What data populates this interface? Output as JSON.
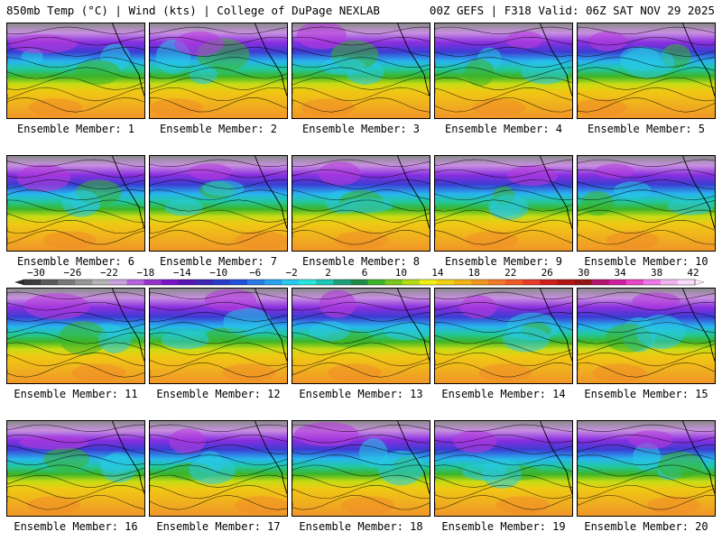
{
  "header": {
    "left": "850mb Temp (°C) | Wind (kts) | College of DuPage NEXLAB",
    "right": "00Z GEFS | F318 Valid: 06Z SAT NOV 29 2025"
  },
  "member_prefix": "Ensemble Member: ",
  "members": [
    "1",
    "2",
    "3",
    "4",
    "5",
    "6",
    "7",
    "8",
    "9",
    "10",
    "11",
    "12",
    "13",
    "14",
    "15",
    "16",
    "17",
    "18",
    "19",
    "20"
  ],
  "colorbar": {
    "labels": [
      "−30",
      "−26",
      "−22",
      "−18",
      "−14",
      "−10",
      "−6",
      "−2",
      "2",
      "6",
      "10",
      "14",
      "18",
      "22",
      "26",
      "30",
      "34",
      "38",
      "42"
    ],
    "colors": [
      "#3c3c3c",
      "#5a5a5a",
      "#787878",
      "#969696",
      "#b4b4b4",
      "#c8a0dc",
      "#b464dc",
      "#9632c8",
      "#7814c8",
      "#5a14b4",
      "#3c28b4",
      "#283cc8",
      "#2050dc",
      "#2878e6",
      "#28a0f0",
      "#28c8f0",
      "#28e6dc",
      "#1ec8b4",
      "#1ea07a",
      "#1e8c46",
      "#3cb428",
      "#78c81e",
      "#b4dc14",
      "#f0f014",
      "#f0d214",
      "#f0b414",
      "#f0961e",
      "#f07828",
      "#f05a28",
      "#e63c28",
      "#d21e1e",
      "#b41414",
      "#961414",
      "#b4146e",
      "#d21ea0",
      "#e646c8",
      "#f078e6",
      "#f0b4f0",
      "#fadcfa"
    ]
  }
}
